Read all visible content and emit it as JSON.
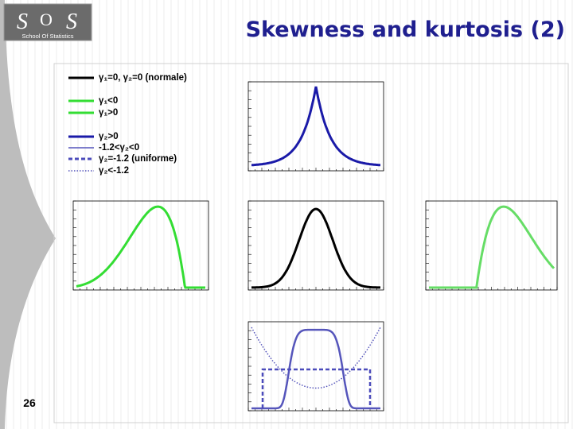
{
  "header": {
    "title": "Skewness and kurtosis (2)",
    "logo": {
      "letters": [
        "S",
        "O",
        "S"
      ],
      "caption": "School Of Statistics"
    }
  },
  "legend": [
    "γ₁=0, γ₂=0 (normale)",
    "γ₁<0",
    "γ₁>0",
    "γ₂>0",
    "-1.2<γ₂<0",
    "γ₂=-1.2 (uniforme)",
    "γ₂<-1.2"
  ],
  "footer": {
    "page_number": "26"
  }
}
